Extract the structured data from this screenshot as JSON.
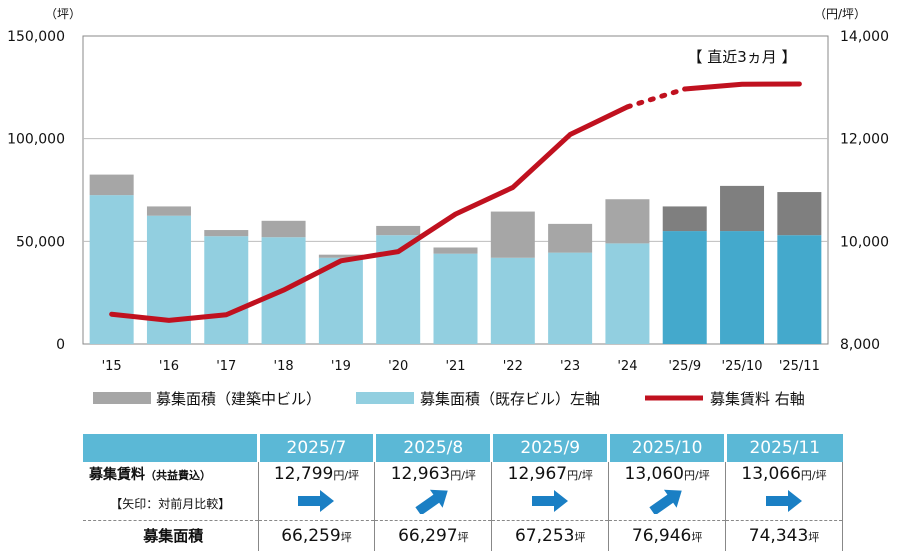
{
  "chart_data": {
    "type": "stacked-bar-with-line",
    "categories": [
      "'15",
      "'16",
      "'17",
      "'18",
      "'19",
      "'20",
      "'21",
      "'22",
      "'23",
      "'24",
      "'25/9",
      "'25/10",
      "'25/11"
    ],
    "series": [
      {
        "name": "募集面積（既存ビル）左軸",
        "axis": "left",
        "color": "#92cfe0",
        "recent_color": "#44a9cc",
        "values": [
          72500,
          62500,
          52500,
          52000,
          42000,
          53000,
          44000,
          42000,
          44500,
          49000,
          55000,
          55000,
          53000
        ]
      },
      {
        "name": "募集面積（建築中ビル）",
        "axis": "left",
        "color": "#a6a6a6",
        "recent_color": "#7f7f7f",
        "values": [
          10000,
          4500,
          3000,
          8000,
          1500,
          4500,
          3000,
          22500,
          14000,
          21500,
          12000,
          22000,
          21000
        ]
      },
      {
        "name": "募集賃料 右軸",
        "axis": "right",
        "color": "#c0111f",
        "values": [
          8580,
          8460,
          8570,
          9050,
          9620,
          9800,
          10530,
          11050,
          12080,
          12620,
          12967,
          13060,
          13066
        ]
      }
    ],
    "left_axis": {
      "unit": "（坪）",
      "min": 0,
      "max": 150000,
      "ticks": [
        "0",
        "50,000",
        "100,000",
        "150,000"
      ]
    },
    "right_axis": {
      "unit": "（円/坪）",
      "min": 8000,
      "max": 14000,
      "ticks": [
        "8,000",
        "10,000",
        "12,000",
        "14,000"
      ]
    },
    "recent_label": "【 直近3ヵ月 】",
    "recent_start_index": 10,
    "legend": [
      "募集面積（建築中ビル）",
      "募集面積（既存ビル）左軸",
      "募集賃料 右軸"
    ]
  },
  "table": {
    "months": [
      "2025/7",
      "2025/8",
      "2025/9",
      "2025/10",
      "2025/11"
    ],
    "rent_label": "募集賃料",
    "rent_label_note": "（共益費込）",
    "rent_unit": "円/坪",
    "rents": [
      "12,799",
      "12,963",
      "12,967",
      "13,060",
      "13,066"
    ],
    "arrow_label": "【矢印：対前月比較】",
    "arrows": [
      "right",
      "up-right",
      "right",
      "up-right",
      "right"
    ],
    "area_label": "募集面積",
    "area_unit": "坪",
    "areas": [
      "66,259",
      "66,297",
      "67,253",
      "76,946",
      "74,343"
    ],
    "arrow_color": "#1a7fc4"
  }
}
